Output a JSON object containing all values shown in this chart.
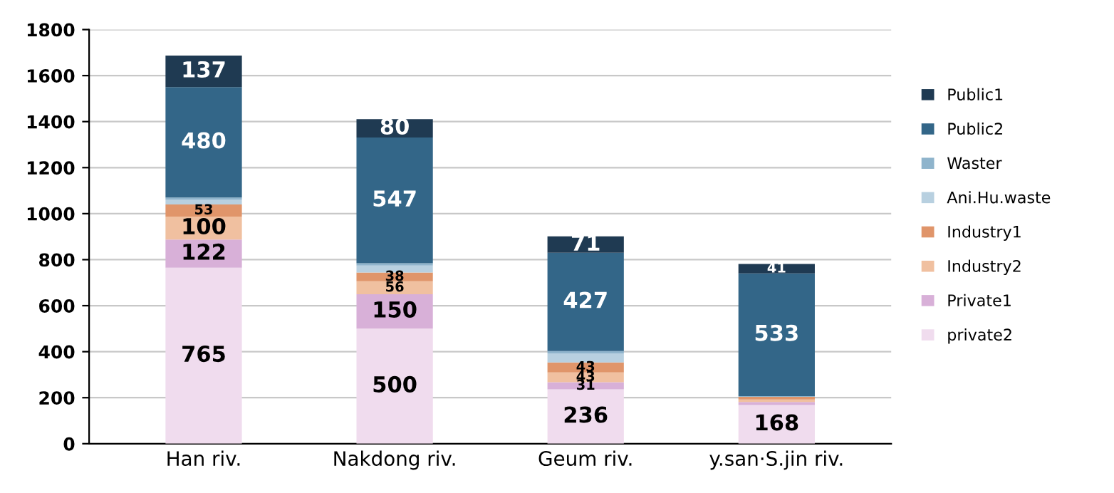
{
  "chart_data": {
    "type": "bar",
    "stacked": true,
    "categories": [
      "Han riv.",
      "Nakdong riv.",
      "Geum riv.",
      "y.san·S.jin riv."
    ],
    "series": [
      {
        "name": "private2",
        "color": "#f0dcee",
        "values": [
          765,
          500,
          236,
          168
        ],
        "value_labels": [
          "765",
          "500",
          "236",
          "168"
        ]
      },
      {
        "name": "Private1",
        "color": "#d8b0d8",
        "values": [
          122,
          150,
          31,
          13
        ],
        "value_labels": [
          "122",
          "150",
          "31",
          null
        ]
      },
      {
        "name": "Industry2",
        "color": "#f0c0a0",
        "values": [
          100,
          56,
          43,
          11
        ],
        "value_labels": [
          "100",
          "56",
          "43",
          null
        ]
      },
      {
        "name": "Industry1",
        "color": "#e0956a",
        "values": [
          53,
          38,
          43,
          12
        ],
        "value_labels": [
          "53",
          "38",
          "43",
          null
        ]
      },
      {
        "name": "Ani.Hu.waste",
        "color": "#b8d0e0",
        "values": [
          20,
          30,
          40,
          null
        ],
        "value_labels": [
          null,
          null,
          null,
          null
        ]
      },
      {
        "name": "Waster",
        "color": "#8fb4cc",
        "values": [
          10,
          10,
          10,
          3
        ],
        "value_labels": [
          null,
          null,
          null,
          null
        ]
      },
      {
        "name": "Public2",
        "color": "#336688",
        "values": [
          480,
          547,
          427,
          533
        ],
        "value_labels": [
          "480",
          "547",
          "427",
          "533"
        ]
      },
      {
        "name": "Public1",
        "color": "#1f3a52",
        "values": [
          137,
          80,
          71,
          41
        ],
        "value_labels": [
          "137",
          "80",
          "71",
          "41"
        ]
      }
    ],
    "ylim": [
      0,
      1800
    ],
    "yticks": [
      0,
      200,
      400,
      600,
      800,
      1000,
      1200,
      1400,
      1600,
      1800
    ],
    "grid": "y",
    "legend": "right"
  }
}
